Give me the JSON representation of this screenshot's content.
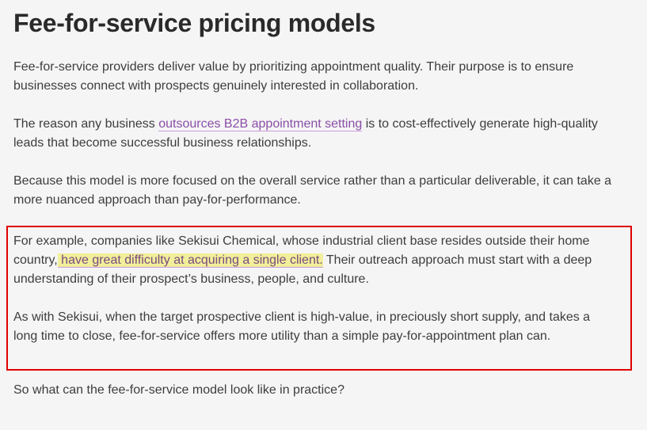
{
  "heading": "Fee-for-service pricing models",
  "paragraphs": {
    "p1": "Fee-for-service providers deliver value by prioritizing appointment quality. Their purpose is to ensure businesses connect with prospects genuinely interested in collaboration.",
    "p2_before": "The reason any business ",
    "p2_link": "outsources B2B appointment setting",
    "p2_after": " is to cost-effectively generate high-quality leads that become successful business relationships.",
    "p3": "Because this model is more focused on the overall service rather than a particular deliverable, it can take a more nuanced approach than pay-for-performance.",
    "p4_before": "For example, companies like Sekisui Chemical, whose industrial client base resides outside their home country,",
    "p4_highlight": " have great difficulty at acquiring a single client.",
    "p4_after": " Their outreach approach must start with a deep understanding of their prospect’s business, people, and culture.",
    "p5": "As with Sekisui, when the target prospective client is high-value, in preciously short supply, and takes a long time to close, fee-for-service offers more utility than a simple pay-for-appointment plan can.",
    "p6": "So what can the fee-for-service model look like in practice?"
  },
  "colors": {
    "link": "#8a4fa8",
    "highlight": "#f1ef9a",
    "annotation_box": "#e00000"
  }
}
